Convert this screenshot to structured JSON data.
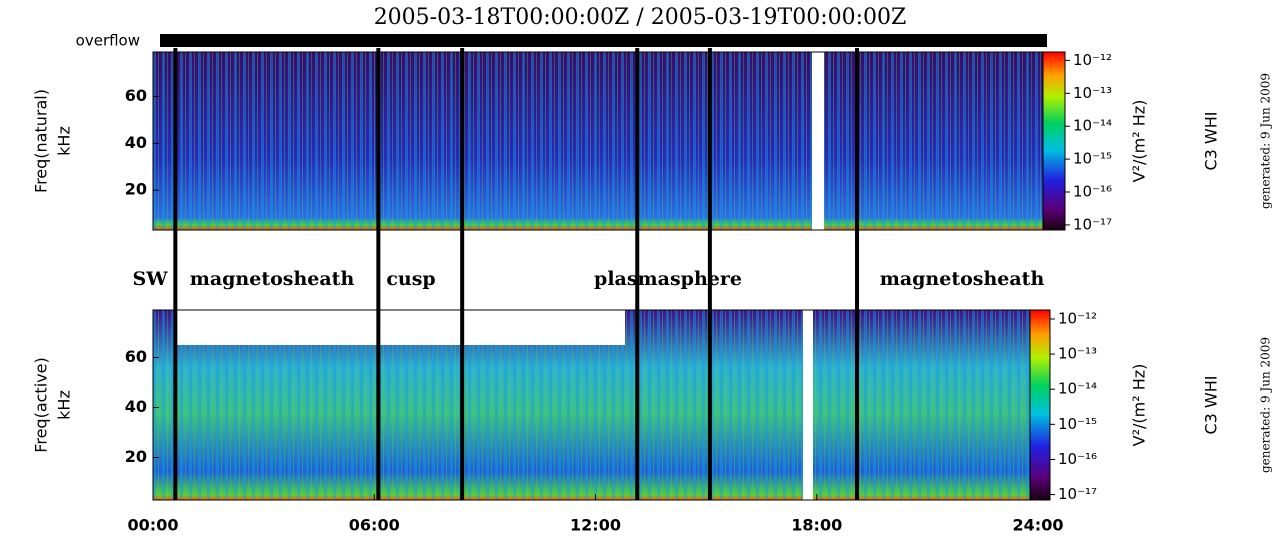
{
  "title": "2005-03-18T00:00:00Z / 2005-03-19T00:00:00Z",
  "overflow_label": "overflow",
  "boundaries": [
    0.6,
    6.05,
    8.3,
    13.0,
    14.95,
    18.9
  ],
  "regions": [
    "SW",
    "magnetosheath",
    "cusp",
    "plasmasphere",
    "magnetosheath"
  ],
  "chart_data": [
    {
      "type": "spectrogram",
      "ylabel": [
        "Freq(natural)",
        "kHz"
      ],
      "xlim": [
        0,
        24
      ],
      "ylim": [
        3,
        79
      ],
      "yticks": [
        20,
        40,
        60
      ],
      "colorbar": {
        "label": "V²/(m² Hz)",
        "scale": "log",
        "lim": [
          7e-18,
          1.8e-12
        ],
        "ticks": [
          {
            "value": 1e-12,
            "label": "10⁻¹²"
          },
          {
            "value": 1e-13,
            "label": "10⁻¹³"
          },
          {
            "value": 1e-14,
            "label": "10⁻¹⁴"
          },
          {
            "value": 1e-15,
            "label": "10⁻¹⁵"
          },
          {
            "value": 1e-16,
            "label": "10⁻¹⁶"
          },
          {
            "value": 1e-17,
            "label": "10⁻¹⁷"
          }
        ]
      },
      "instrument": "C3 WHI",
      "generated": "generated: 9 Jun 2009"
    },
    {
      "type": "spectrogram",
      "ylabel": [
        "Freq(active)",
        "kHz"
      ],
      "xlim": [
        0,
        24
      ],
      "ylim": [
        3,
        79
      ],
      "yticks": [
        20,
        40,
        60
      ],
      "xticks": [
        {
          "value": 0,
          "label": "00:00"
        },
        {
          "value": 6,
          "label": "06:00"
        },
        {
          "value": 12,
          "label": "12:00"
        },
        {
          "value": 18,
          "label": "18:00"
        },
        {
          "value": 24,
          "label": "24:00"
        }
      ],
      "colorbar": {
        "label": "V²/(m² Hz)",
        "scale": "log",
        "lim": [
          7e-18,
          1.8e-12
        ],
        "ticks": [
          {
            "value": 1e-12,
            "label": "10⁻¹²"
          },
          {
            "value": 1e-13,
            "label": "10⁻¹³"
          },
          {
            "value": 1e-14,
            "label": "10⁻¹⁴"
          },
          {
            "value": 1e-15,
            "label": "10⁻¹⁵"
          },
          {
            "value": 1e-16,
            "label": "10⁻¹⁶"
          },
          {
            "value": 1e-17,
            "label": "10⁻¹⁷"
          }
        ]
      },
      "instrument": "C3 WHI",
      "generated": "generated: 9 Jun 2009"
    }
  ]
}
